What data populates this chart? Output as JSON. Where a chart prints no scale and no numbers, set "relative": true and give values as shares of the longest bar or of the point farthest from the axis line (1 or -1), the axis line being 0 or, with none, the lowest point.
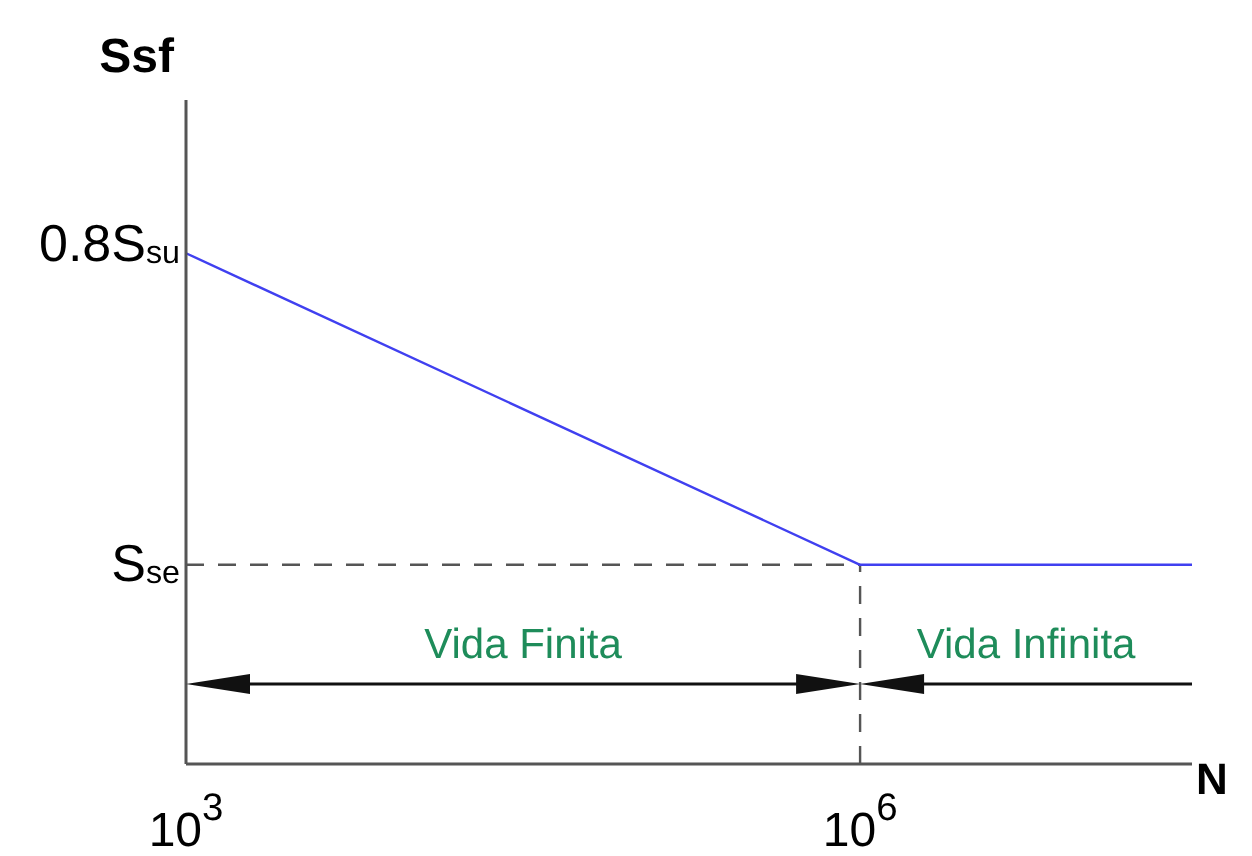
{
  "chart_data": {
    "type": "line",
    "relative": true,
    "xlabel": "N",
    "ylabel": "Ssf",
    "x": [
      1000,
      1000000,
      30000000
    ],
    "values": [
      1,
      0.39,
      0.39
    ],
    "color": "#4040f0",
    "marker": "none",
    "line_style": "solid",
    "log": "x",
    "xlim": [
      1000,
      30000000
    ],
    "xticks": [
      {
        "value": 1000,
        "label": "10$^{3}$"
      },
      {
        "value": 1000000,
        "label": "10$^{6}$"
      }
    ],
    "ref_lines": [
      {
        "axis": "y",
        "value": 0.39,
        "label": "S$_{se}$",
        "color": "#555555",
        "line_style": "dashed"
      },
      {
        "axis": "x",
        "value": 1000000,
        "color": "#555555",
        "line_style": "dashed"
      }
    ],
    "annotations": [
      {
        "text": "0.8S$_{su}$",
        "x": 1000,
        "y": 1
      },
      "Vida Finita",
      "Vida Infinita"
    ]
  }
}
